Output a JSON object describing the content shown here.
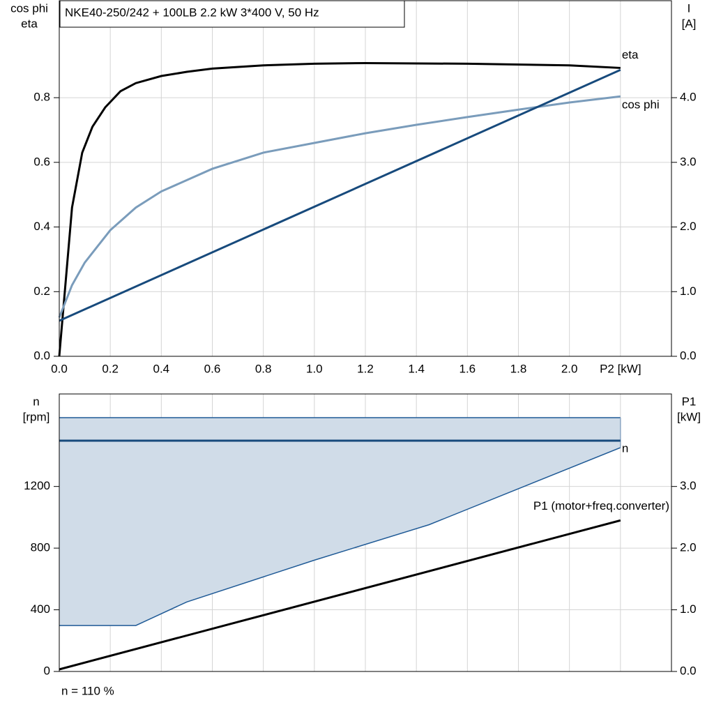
{
  "chart_data": [
    {
      "type": "line",
      "title": "NKE40-250/242 + 100LB   2.2 kW   3*400 V, 50 Hz",
      "ylabel": [
        "cos phi",
        "eta"
      ],
      "y2label": [
        "I",
        "[A]"
      ],
      "xlim": [
        0,
        2.4
      ],
      "xticks": [
        {
          "value": 0,
          "label": "0.0"
        },
        0.2,
        0.4,
        0.6,
        0.8,
        {
          "value": 1,
          "label": "1.0"
        },
        1.2,
        1.4,
        1.6,
        1.8,
        {
          "value": 2,
          "label": "2.0"
        },
        {
          "value": 2.2,
          "label": "P2 [kW]"
        }
      ],
      "ylim": [
        0,
        1.1
      ],
      "yticks": [
        {
          "value": 0,
          "label": "0.0"
        },
        0.2,
        0.4,
        0.6,
        0.8
      ],
      "y2lim": [
        0,
        5.5
      ],
      "y2ticks": [
        {
          "value": 0,
          "label": "0.0"
        },
        {
          "value": 1,
          "label": "1.0"
        },
        {
          "value": 2,
          "label": "2.0"
        },
        {
          "value": 3,
          "label": "3.0"
        },
        {
          "value": 4,
          "label": "4.0"
        }
      ],
      "grid": true,
      "series": [
        {
          "name": "eta",
          "color": "#000000",
          "x": [
            0,
            0.05,
            0.09,
            0.13,
            0.18,
            0.24,
            0.3,
            0.4,
            0.5,
            0.6,
            0.8,
            1.0,
            1.2,
            1.6,
            2.0,
            2.2
          ],
          "values": [
            0,
            0.46,
            0.63,
            0.71,
            0.77,
            0.82,
            0.845,
            0.867,
            0.88,
            0.89,
            0.9,
            0.905,
            0.907,
            0.905,
            0.9,
            0.892
          ]
        },
        {
          "name": "cos phi",
          "color": "#7a9cbb",
          "x": [
            0,
            0.05,
            0.1,
            0.15,
            0.2,
            0.3,
            0.4,
            0.6,
            0.8,
            1.0,
            1.2,
            1.4,
            1.6,
            1.8,
            2.0,
            2.2
          ],
          "values": [
            0.12,
            0.22,
            0.29,
            0.34,
            0.39,
            0.46,
            0.51,
            0.58,
            0.63,
            0.66,
            0.69,
            0.716,
            0.74,
            0.763,
            0.785,
            0.804
          ]
        },
        {
          "color": "#174a7c",
          "axis": "y2",
          "x": [
            0,
            2.2
          ],
          "values": [
            0.55,
            4.43
          ]
        }
      ]
    },
    {
      "type": "line",
      "ylabel": [
        "n",
        "[rpm]"
      ],
      "y2label": [
        "P1",
        "[kW]"
      ],
      "annotation": "n = 110 %",
      "xlim": [
        0,
        2.4
      ],
      "xticks": [
        0,
        0.2,
        0.4,
        0.6,
        0.8,
        1,
        1.2,
        1.4,
        1.6,
        1.8,
        2,
        2.2
      ],
      "ylim": [
        0,
        1800
      ],
      "yticks": [
        0,
        400,
        800,
        1200
      ],
      "y2lim": [
        0,
        4.5
      ],
      "y2ticks": [
        {
          "value": 0,
          "label": "0.0"
        },
        {
          "value": 1,
          "label": "1.0"
        },
        {
          "value": 2,
          "label": "2.0"
        },
        {
          "value": 3,
          "label": "3.0"
        }
      ],
      "grid": true,
      "range": {
        "color": "#1f5a96",
        "fill": "#d0dce8",
        "x": [
          0,
          0.3,
          0.5,
          1.0,
          1.45,
          2.2
        ],
        "lower": [
          298,
          298,
          451,
          722,
          952,
          1452
        ],
        "upper": [
          1646,
          1646,
          1646,
          1646,
          1646,
          1646
        ]
      },
      "series": [
        {
          "name": "n",
          "color": "#174a7c",
          "x": [
            0,
            2.2
          ],
          "values": [
            1497,
            1497
          ]
        },
        {
          "name": "P1 (motor+freq.converter)",
          "color": "#000000",
          "axis": "y2",
          "x": [
            0,
            2.2
          ],
          "values": [
            0.034,
            2.45
          ]
        }
      ]
    }
  ]
}
